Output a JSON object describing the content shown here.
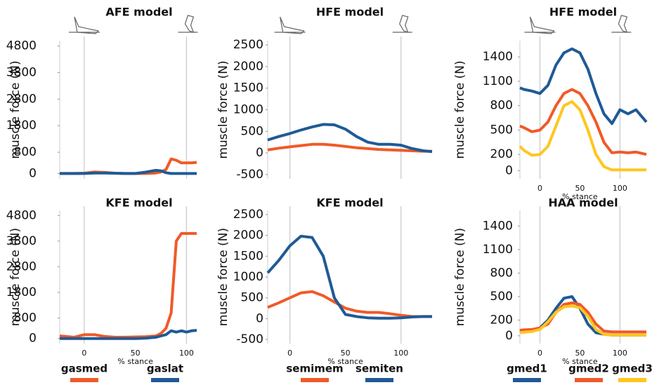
{
  "chart_data": [
    {
      "type": "line",
      "title": "AFE model",
      "ylabel": "muscle force (N)",
      "ylim": [
        -200,
        5000
      ],
      "yticks": [
        0,
        800,
        1800,
        2800,
        3800,
        4800
      ],
      "xlim": [
        -24,
        110
      ],
      "vlines": [
        0,
        100
      ],
      "x": [
        -24,
        -10,
        0,
        10,
        20,
        30,
        40,
        50,
        60,
        70,
        75,
        80,
        85,
        90,
        95,
        100,
        105,
        110
      ],
      "series": [
        {
          "color": "#f05a28",
          "values": [
            0,
            0,
            10,
            60,
            40,
            10,
            0,
            0,
            0,
            20,
            60,
            150,
            550,
            500,
            400,
            400,
            400,
            420
          ]
        },
        {
          "color": "#1f5a96",
          "values": [
            0,
            0,
            0,
            20,
            20,
            10,
            0,
            0,
            50,
            120,
            100,
            30,
            0,
            0,
            0,
            0,
            0,
            0
          ]
        }
      ]
    },
    {
      "type": "line",
      "title": "HFE model",
      "ylabel": "muscle force (N)",
      "ylim": [
        -600,
        2600
      ],
      "yticks": [
        -500,
        0,
        500,
        1000,
        1500,
        2000,
        2500
      ],
      "xlim": [
        -20,
        128
      ],
      "vlines": [
        0,
        100
      ],
      "x": [
        -20,
        -10,
        0,
        10,
        20,
        30,
        40,
        50,
        60,
        70,
        80,
        90,
        100,
        110,
        120,
        128
      ],
      "series": [
        {
          "color": "#f05a28",
          "values": [
            70,
            110,
            140,
            170,
            200,
            200,
            180,
            150,
            120,
            100,
            80,
            70,
            60,
            50,
            40,
            40
          ]
        },
        {
          "color": "#1f5a96",
          "values": [
            300,
            380,
            450,
            530,
            600,
            660,
            650,
            550,
            380,
            250,
            200,
            200,
            180,
            100,
            50,
            30
          ]
        }
      ]
    },
    {
      "type": "line",
      "title": "HFE model",
      "ylabel": "muscle force (N)",
      "xlabel": "% stance",
      "ylim": [
        -100,
        1600
      ],
      "yticks": [
        0,
        200,
        500,
        800,
        1100,
        1400
      ],
      "xlim": [
        -25,
        133
      ],
      "vlines": [
        0,
        100
      ],
      "xticks": [
        0,
        50,
        100
      ],
      "x": [
        -25,
        -20,
        -10,
        0,
        10,
        20,
        30,
        40,
        50,
        60,
        70,
        80,
        90,
        100,
        110,
        120,
        133
      ],
      "series": [
        {
          "color": "#1f5a96",
          "values": [
            1020,
            1000,
            980,
            950,
            1050,
            1300,
            1450,
            1500,
            1450,
            1250,
            950,
            700,
            580,
            750,
            700,
            750,
            600
          ]
        },
        {
          "color": "#f05a28",
          "values": [
            550,
            530,
            480,
            500,
            600,
            800,
            950,
            1000,
            950,
            800,
            600,
            350,
            220,
            230,
            220,
            230,
            200
          ]
        },
        {
          "color": "#ffc61e",
          "values": [
            300,
            250,
            190,
            200,
            300,
            550,
            800,
            850,
            750,
            500,
            200,
            50,
            10,
            10,
            10,
            10,
            10
          ]
        }
      ]
    },
    {
      "type": "line",
      "title": "KFE model",
      "ylabel": "muscle force (N)",
      "xlabel": "% stance",
      "ylim": [
        -200,
        5000
      ],
      "yticks": [
        0,
        800,
        1800,
        2800,
        3800,
        4800
      ],
      "xlim": [
        -24,
        110
      ],
      "vlines": [
        0,
        100
      ],
      "xticks": [
        0,
        50,
        100
      ],
      "x": [
        -24,
        -10,
        0,
        10,
        20,
        30,
        40,
        50,
        60,
        70,
        75,
        80,
        85,
        90,
        95,
        100,
        105,
        110
      ],
      "series": [
        {
          "name": "gasmed",
          "color": "#f05a28",
          "values": [
            100,
            50,
            150,
            150,
            80,
            50,
            50,
            60,
            70,
            100,
            200,
            400,
            1000,
            3800,
            4100,
            4100,
            4100,
            4100
          ]
        },
        {
          "name": "gaslat",
          "color": "#1f5a96",
          "values": [
            0,
            0,
            0,
            0,
            0,
            0,
            0,
            0,
            10,
            50,
            100,
            150,
            300,
            250,
            300,
            250,
            300,
            320
          ]
        }
      ]
    },
    {
      "type": "line",
      "title": "KFE model",
      "ylabel": "muscle force (N)",
      "xlabel": "% stance",
      "ylim": [
        -600,
        2600
      ],
      "yticks": [
        -500,
        0,
        500,
        1000,
        1500,
        2000,
        2500
      ],
      "xlim": [
        -20,
        128
      ],
      "vlines": [
        0,
        100
      ],
      "xticks": [
        0,
        50,
        100
      ],
      "x": [
        -20,
        -10,
        0,
        10,
        20,
        30,
        40,
        50,
        60,
        70,
        80,
        90,
        100,
        110,
        120,
        128
      ],
      "series": [
        {
          "name": "semimem",
          "color": "#f05a28",
          "values": [
            270,
            380,
            500,
            620,
            650,
            550,
            400,
            250,
            180,
            150,
            150,
            120,
            80,
            50,
            50,
            50
          ]
        },
        {
          "name": "semiten",
          "color": "#1f5a96",
          "values": [
            1100,
            1400,
            1750,
            1980,
            1950,
            1500,
            500,
            100,
            50,
            20,
            10,
            10,
            20,
            40,
            50,
            50
          ]
        }
      ]
    },
    {
      "type": "line",
      "title": "HAA model",
      "ylabel": "muscle force (N)",
      "xlabel": "% stance",
      "ylim": [
        -100,
        1600
      ],
      "yticks": [
        0,
        200,
        500,
        800,
        1100,
        1400
      ],
      "xlim": [
        -25,
        133
      ],
      "vlines": [
        0,
        100
      ],
      "xticks": [
        0,
        50,
        100
      ],
      "x": [
        -25,
        -20,
        -10,
        0,
        10,
        20,
        30,
        40,
        50,
        60,
        70,
        80,
        90,
        100,
        110,
        120,
        133
      ],
      "series": [
        {
          "name": "gmed1",
          "color": "#1f5a96",
          "values": [
            50,
            60,
            70,
            100,
            200,
            350,
            480,
            500,
            350,
            150,
            40,
            20,
            10,
            10,
            10,
            10,
            10
          ]
        },
        {
          "name": "gmed2",
          "color": "#f05a28",
          "values": [
            70,
            75,
            80,
            100,
            150,
            300,
            400,
            420,
            400,
            300,
            150,
            60,
            50,
            50,
            50,
            50,
            50
          ]
        },
        {
          "name": "gmed3",
          "color": "#ffc61e",
          "values": [
            40,
            45,
            55,
            80,
            180,
            300,
            370,
            380,
            360,
            250,
            80,
            20,
            10,
            10,
            10,
            10,
            10
          ]
        }
      ]
    }
  ]
}
